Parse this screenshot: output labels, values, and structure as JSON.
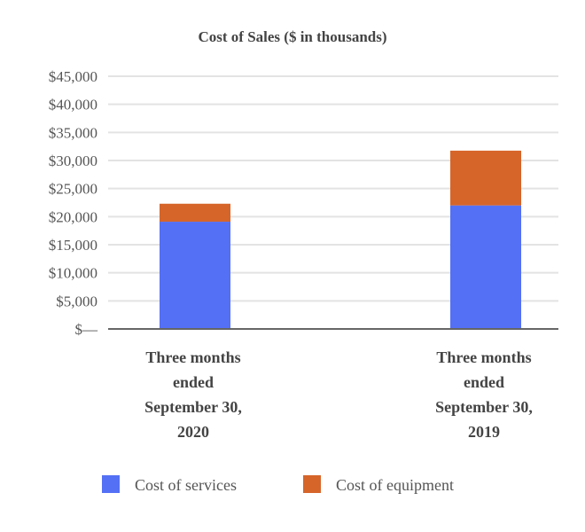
{
  "chart_data": {
    "type": "bar",
    "stacked": true,
    "title": "Cost of Sales ($ in thousands)",
    "xlabel": "",
    "ylabel": "",
    "ylim": [
      0,
      45000
    ],
    "yticks": [
      0,
      5000,
      10000,
      15000,
      20000,
      25000,
      30000,
      35000,
      40000,
      45000
    ],
    "ytick_labels": [
      "$—",
      "$5,000",
      "$10,000",
      "$15,000",
      "$20,000",
      "$25,000",
      "$30,000",
      "$35,000",
      "$40,000",
      "$45,000"
    ],
    "grid": true,
    "legend_position": "bottom",
    "categories": [
      [
        "Three months",
        "ended",
        "September 30,",
        "2020"
      ],
      [
        "Three months",
        "ended",
        "September 30,",
        "2019"
      ]
    ],
    "series": [
      {
        "name": "Cost of services",
        "color": "#5470f5",
        "values": [
          19100,
          22000
        ]
      },
      {
        "name": "Cost of equipment",
        "color": "#d6652a",
        "values": [
          3200,
          9750
        ]
      }
    ]
  }
}
